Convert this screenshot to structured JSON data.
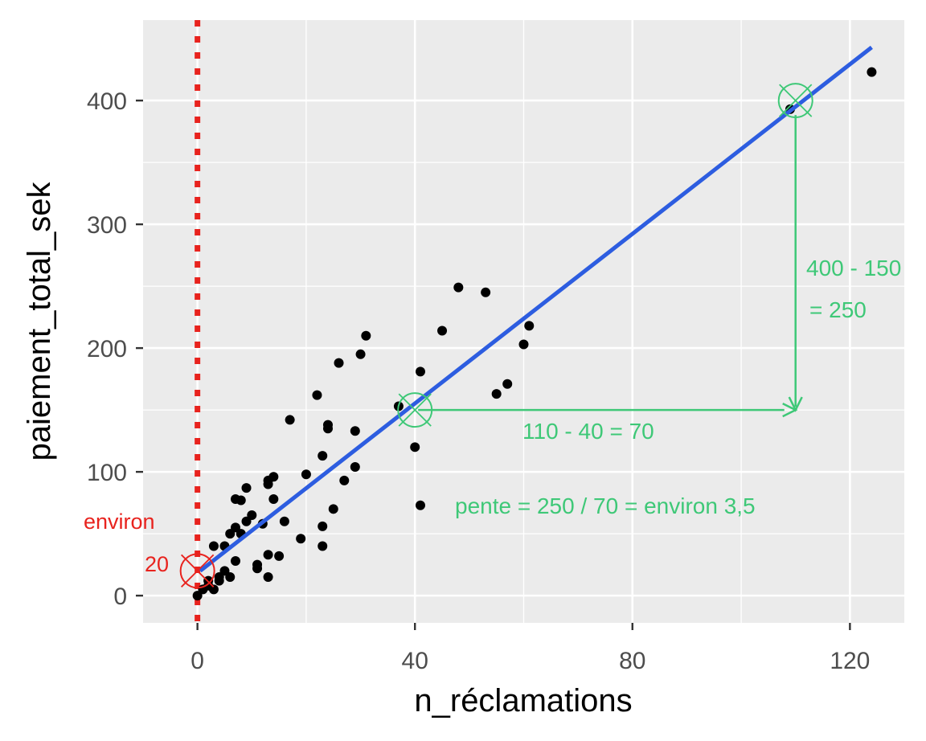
{
  "chart_data": {
    "type": "scatter",
    "title": "",
    "xlabel": "n_réclamations",
    "ylabel": "paiement_total_sek",
    "xlim": [
      -10,
      130
    ],
    "ylim": [
      -22,
      465
    ],
    "x_ticks": [
      "0",
      "40",
      "80",
      "120"
    ],
    "x_tick_values": [
      0,
      40,
      80,
      120
    ],
    "y_ticks": [
      "0",
      "100",
      "200",
      "300",
      "400"
    ],
    "y_tick_values": [
      0,
      100,
      200,
      300,
      400
    ],
    "grid": true,
    "points": [
      [
        0,
        0
      ],
      [
        1,
        5
      ],
      [
        2,
        8
      ],
      [
        2,
        12
      ],
      [
        3,
        5
      ],
      [
        3,
        40
      ],
      [
        4,
        12
      ],
      [
        4,
        15
      ],
      [
        5,
        20
      ],
      [
        5,
        40
      ],
      [
        6,
        15
      ],
      [
        6,
        50
      ],
      [
        7,
        28
      ],
      [
        7,
        55
      ],
      [
        7,
        78
      ],
      [
        8,
        77
      ],
      [
        8,
        50
      ],
      [
        9,
        87
      ],
      [
        9,
        60
      ],
      [
        10,
        65
      ],
      [
        11,
        22
      ],
      [
        11,
        25
      ],
      [
        12,
        58
      ],
      [
        13,
        90
      ],
      [
        13,
        93
      ],
      [
        13,
        15
      ],
      [
        13,
        33
      ],
      [
        14,
        96
      ],
      [
        14,
        78
      ],
      [
        15,
        32
      ],
      [
        16,
        60
      ],
      [
        17,
        142
      ],
      [
        19,
        46
      ],
      [
        20,
        98
      ],
      [
        22,
        162
      ],
      [
        23,
        40
      ],
      [
        23,
        56
      ],
      [
        23,
        113
      ],
      [
        24,
        135
      ],
      [
        24,
        138
      ],
      [
        25,
        70
      ],
      [
        26,
        188
      ],
      [
        27,
        93
      ],
      [
        29,
        133
      ],
      [
        29,
        104
      ],
      [
        30,
        195
      ],
      [
        31,
        210
      ],
      [
        37,
        153
      ],
      [
        40,
        120
      ],
      [
        41,
        181
      ],
      [
        41,
        73
      ],
      [
        45,
        214
      ],
      [
        48,
        249
      ],
      [
        53,
        245
      ],
      [
        55,
        163
      ],
      [
        57,
        171
      ],
      [
        60,
        203
      ],
      [
        61,
        218
      ],
      [
        109,
        393
      ],
      [
        124,
        423
      ]
    ],
    "fit_line": {
      "color": "#2d5de0",
      "x": [
        0.5,
        124
      ],
      "y": [
        20,
        443
      ]
    },
    "baseline": {
      "color": "#e8231e",
      "x": 0
    },
    "annotations": {
      "delta_x": "110 - 40 = 70",
      "delta_y_1": "400 - 150",
      "delta_y_2": "= 250",
      "slope": "pente = 250 / 70 = environ 3,5",
      "intercept_1": "environ",
      "intercept_2": "20",
      "color_green": "#3ec877",
      "color_red": "#e8231e"
    }
  }
}
